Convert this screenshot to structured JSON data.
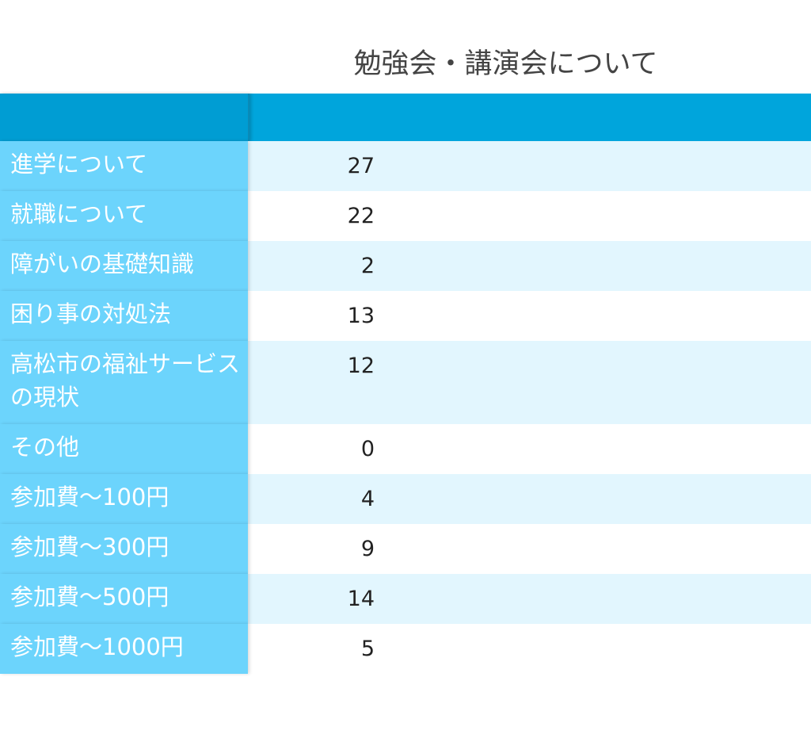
{
  "title": "勉強会・講演会について",
  "header_color": "#00a5dc",
  "label_color": "#6cd4fc",
  "rows": [
    {
      "label": "進学について",
      "value": "27"
    },
    {
      "label": "就職について",
      "value": "22"
    },
    {
      "label": "障がいの基礎知識",
      "value": "2"
    },
    {
      "label": "困り事の対処法",
      "value": "13"
    },
    {
      "label": "高松市の福祉サービスの現状",
      "value": "12"
    },
    {
      "label": "その他",
      "value": "0"
    },
    {
      "label": "参加費～100円",
      "value": "4"
    },
    {
      "label": "参加費～300円",
      "value": "9"
    },
    {
      "label": "参加費～500円",
      "value": "14"
    },
    {
      "label": "参加費～1000円",
      "value": "5"
    }
  ]
}
